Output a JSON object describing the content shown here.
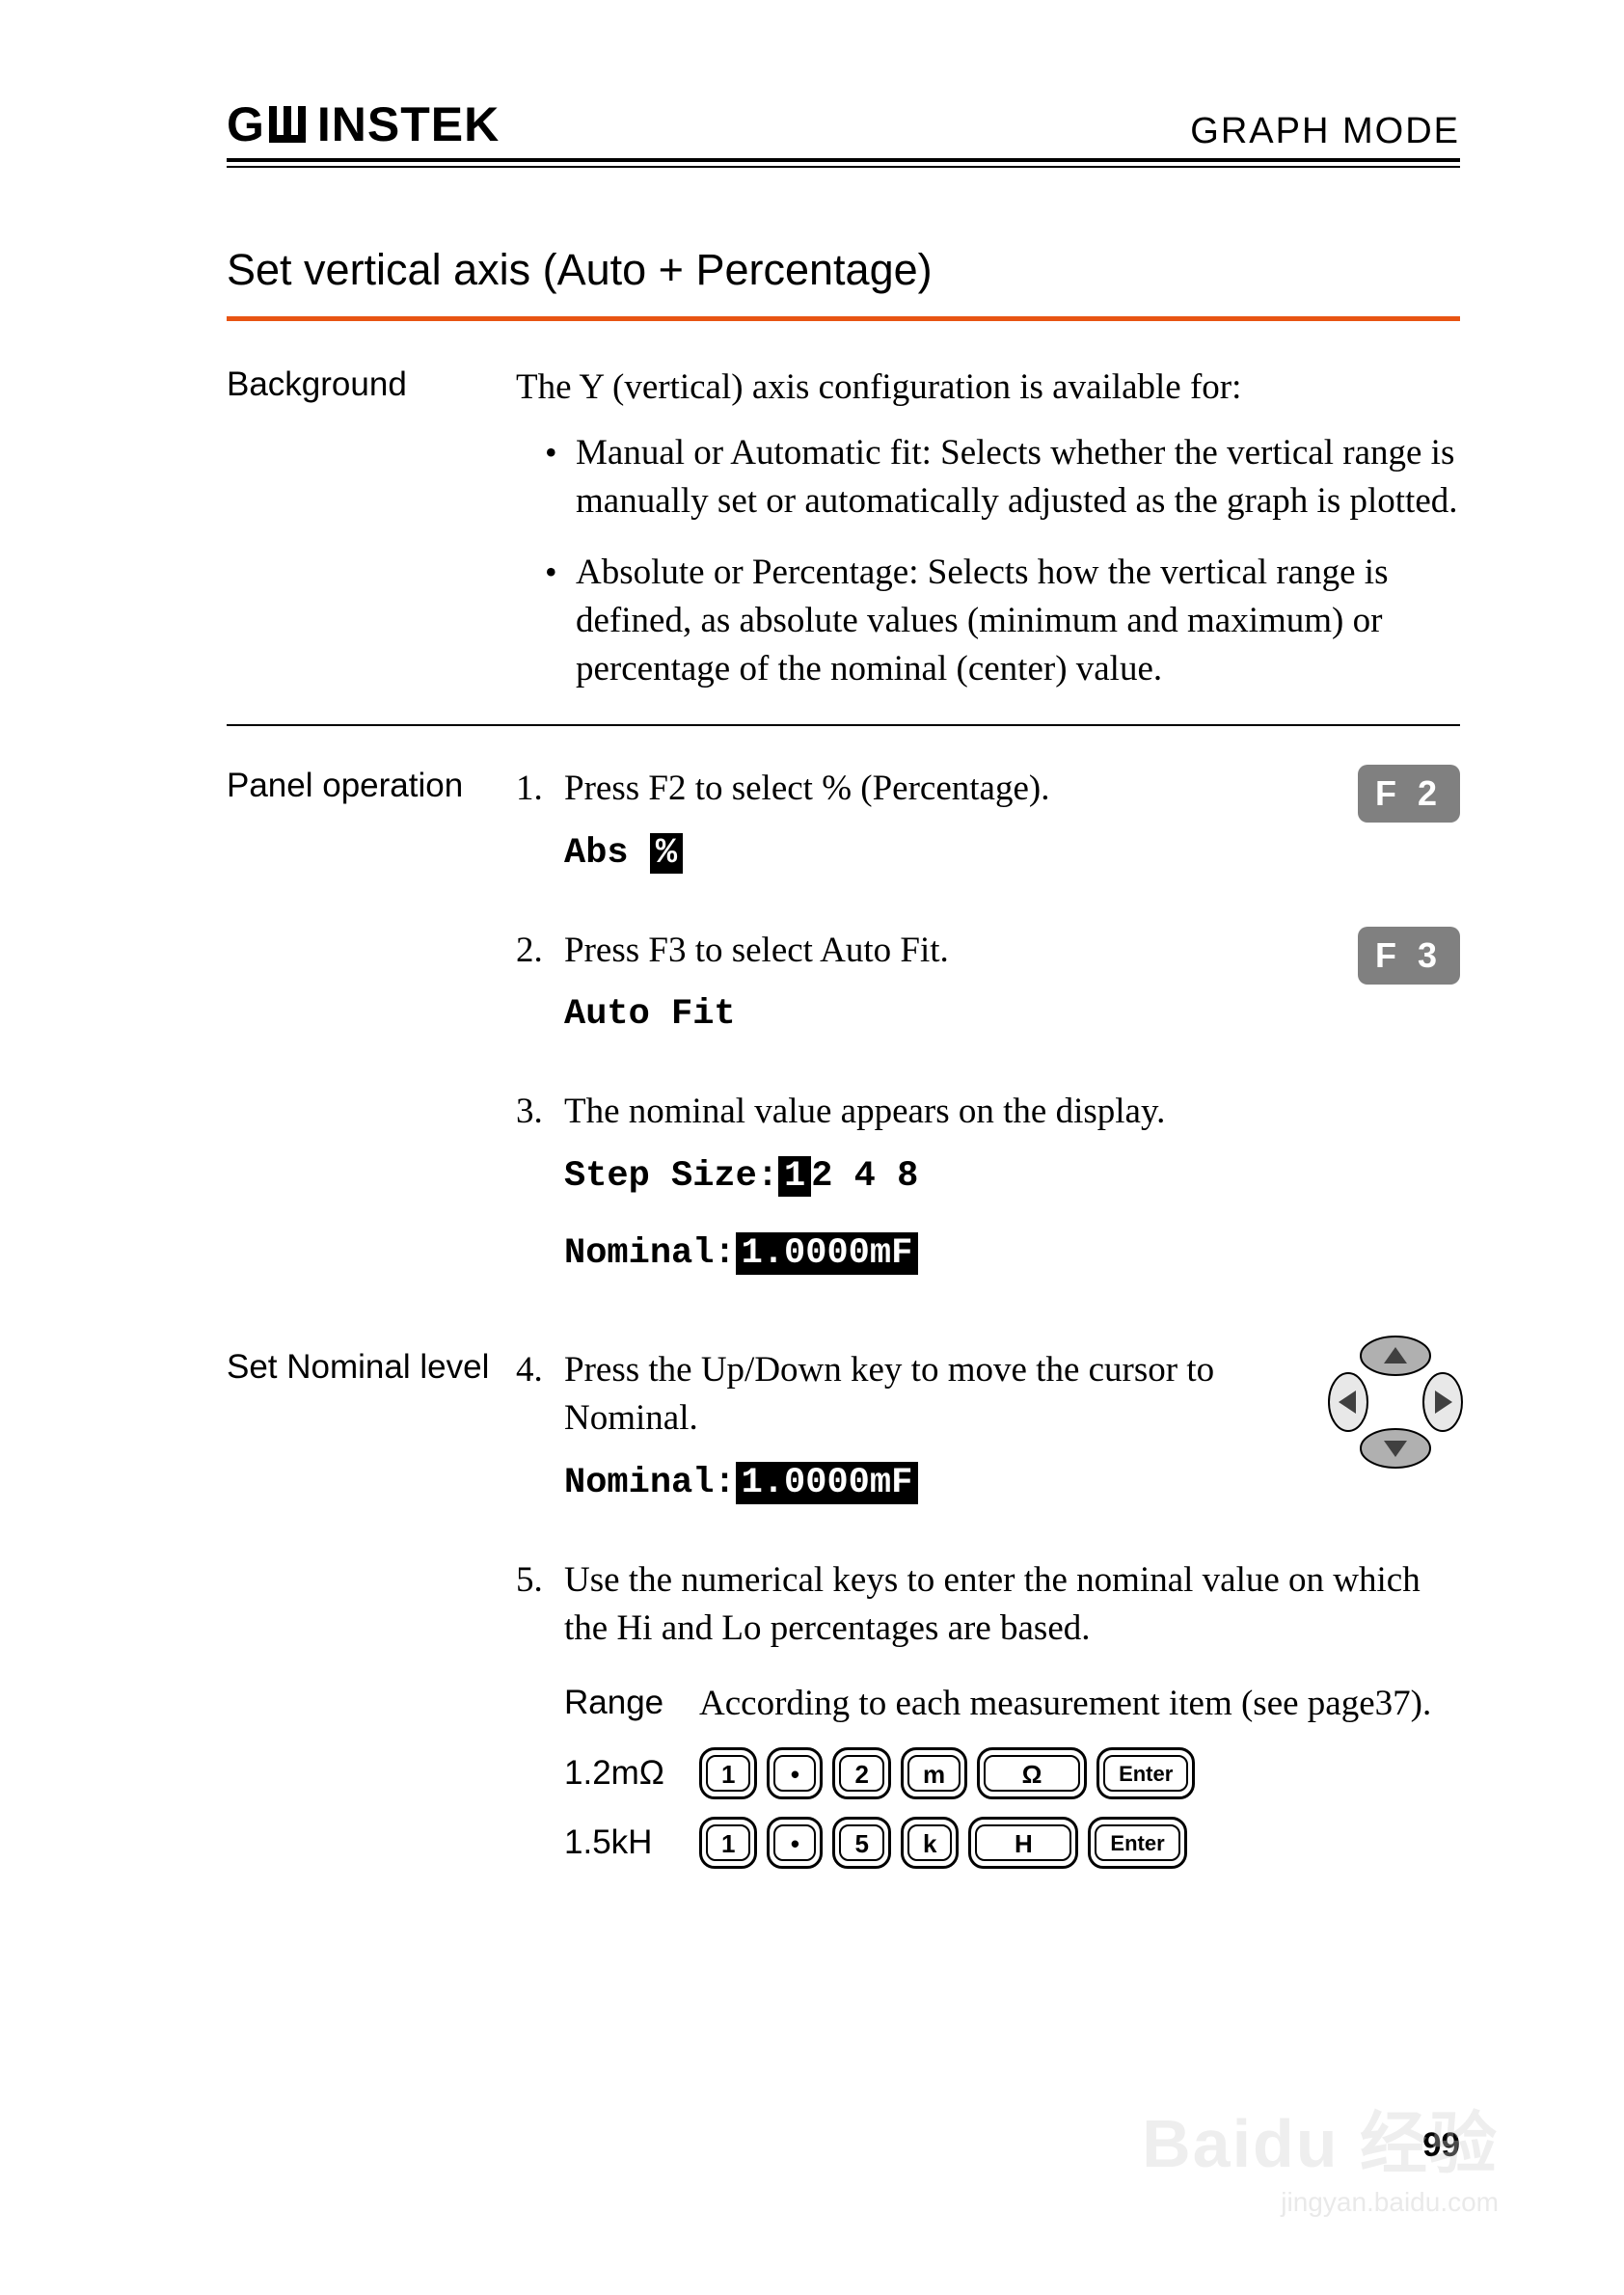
{
  "header": {
    "brand": "GWINSTEK",
    "mode": "GRAPH MODE"
  },
  "section_title": "Set vertical axis (Auto + Percentage)",
  "colors": {
    "rule": "#e85412",
    "fkey_bg": "#808080",
    "fkey_fg": "#ffffff"
  },
  "background": {
    "label": "Background",
    "intro": "The Y (vertical) axis configuration is available for:",
    "bullets": [
      "Manual or Automatic fit: Selects whether the vertical range is manually set or automatically adjusted as the graph is plotted.",
      "Absolute or Percentage: Selects how the vertical range is defined, as absolute values (minimum and maximum) or percentage of the nominal (center) value."
    ]
  },
  "panel_operation": {
    "label": "Panel operation",
    "steps": [
      {
        "num": "1.",
        "text": "Press F2 to select % (Percentage).",
        "fkey": "F 2",
        "display_parts": {
          "prefix": "Abs ",
          "highlight": "%"
        }
      },
      {
        "num": "2.",
        "text": "Press F3 to select Auto Fit.",
        "fkey": "F 3",
        "display": "Auto Fit"
      },
      {
        "num": "3.",
        "text": "The nominal value appears on the display.",
        "step_line": {
          "prefix": "Step Size:",
          "highlight": "1",
          "rest": "2 4 8"
        },
        "nominal_line": {
          "prefix": "Nominal:",
          "highlight": "1.0000mF "
        }
      }
    ]
  },
  "set_nominal": {
    "label": "Set Nominal level",
    "steps": [
      {
        "num": "4.",
        "text": "Press the Up/Down key to move the cursor to Nominal.",
        "nominal_line": {
          "prefix": "Nominal:",
          "highlight": "1.0000mF "
        },
        "arrows": true
      },
      {
        "num": "5.",
        "text": "Use the numerical keys to enter the nominal value on which the Hi and Lo percentages are based.",
        "range": {
          "label": "Range",
          "value": "According to each measurement item (see page37)."
        },
        "examples": [
          {
            "label": "1.2mΩ",
            "keys": [
              "1",
              "•",
              "2",
              "m",
              "Ω",
              "Enter"
            ]
          },
          {
            "label": "1.5kH",
            "keys": [
              "1",
              "•",
              "5",
              "k",
              "H",
              "Enter"
            ]
          }
        ]
      }
    ]
  },
  "page_number": "99",
  "watermark": {
    "big": "Baidu 经验",
    "small": "jingyan.baidu.com"
  }
}
